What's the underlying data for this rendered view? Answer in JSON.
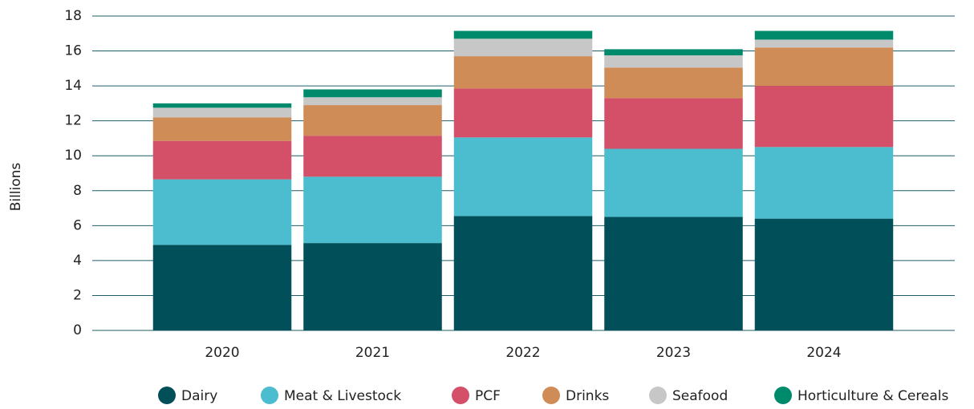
{
  "chart_data": {
    "type": "stacked_bar",
    "y_label": "Billions",
    "categories": [
      "2020",
      "2021",
      "2022",
      "2023",
      "2024"
    ],
    "series": [
      {
        "name": "Dairy",
        "color": "#004f59",
        "values": [
          4.9,
          5.0,
          6.55,
          6.5,
          6.4
        ]
      },
      {
        "name": "Meat & Livestock",
        "color": "#4bbdcf",
        "values": [
          3.75,
          3.8,
          4.5,
          3.9,
          4.1
        ]
      },
      {
        "name": "PCF",
        "color": "#d44f68",
        "values": [
          2.2,
          2.35,
          2.8,
          2.9,
          3.5
        ]
      },
      {
        "name": "Drinks",
        "color": "#d08c57",
        "values": [
          1.35,
          1.75,
          1.85,
          1.75,
          2.2
        ]
      },
      {
        "name": "Seafood",
        "color": "#c7c7c7",
        "values": [
          0.55,
          0.45,
          1.0,
          0.7,
          0.45
        ]
      },
      {
        "name": "Horticulture & Cereals",
        "color": "#008a6c",
        "values": [
          0.25,
          0.45,
          0.45,
          0.35,
          0.5
        ]
      }
    ],
    "ylim": [
      0,
      18
    ],
    "yticks": [
      0,
      2,
      4,
      6,
      8,
      10,
      12,
      14,
      16,
      18
    ],
    "grid": true,
    "legend": "bottom"
  }
}
